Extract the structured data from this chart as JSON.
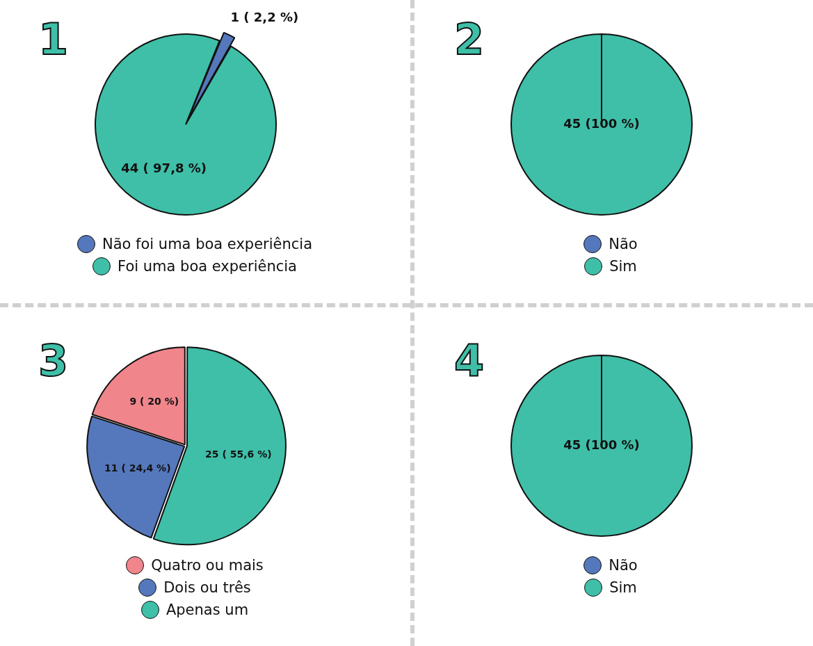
{
  "chart_data": [
    {
      "type": "pie",
      "title": "1",
      "categories": [
        "Não foi uma boa experiência",
        "Foi uma boa experiência"
      ],
      "values": [
        1,
        44
      ],
      "colors": [
        "#5577bb",
        "#3fbfa8"
      ],
      "value_labels": [
        "1 ( 2,2 %)",
        "44 ( 97,8 %)"
      ],
      "legend": "bottom"
    },
    {
      "type": "pie",
      "title": "2",
      "categories": [
        "Não",
        "Sim"
      ],
      "values": [
        0,
        45
      ],
      "colors": [
        "#5577bb",
        "#3fbfa8"
      ],
      "value_labels": [
        null,
        "45 (100 %)"
      ],
      "legend": "bottom"
    },
    {
      "type": "pie",
      "title": "3",
      "categories": [
        "Quatro ou mais",
        "Dois ou três",
        "Apenas um"
      ],
      "values": [
        9,
        11,
        25
      ],
      "colors": [
        "#f0868c",
        "#5577bb",
        "#3fbfa8"
      ],
      "value_labels": [
        "9 ( 20 %)",
        "11 ( 24,4 %)",
        "25 ( 55,6 %)"
      ],
      "legend": "bottom"
    },
    {
      "type": "pie",
      "title": "4",
      "categories": [
        "Não",
        "Sim"
      ],
      "values": [
        0,
        45
      ],
      "colors": [
        "#5577bb",
        "#3fbfa8"
      ],
      "value_labels": [
        null,
        "45 (100 %)"
      ],
      "legend": "bottom"
    }
  ]
}
